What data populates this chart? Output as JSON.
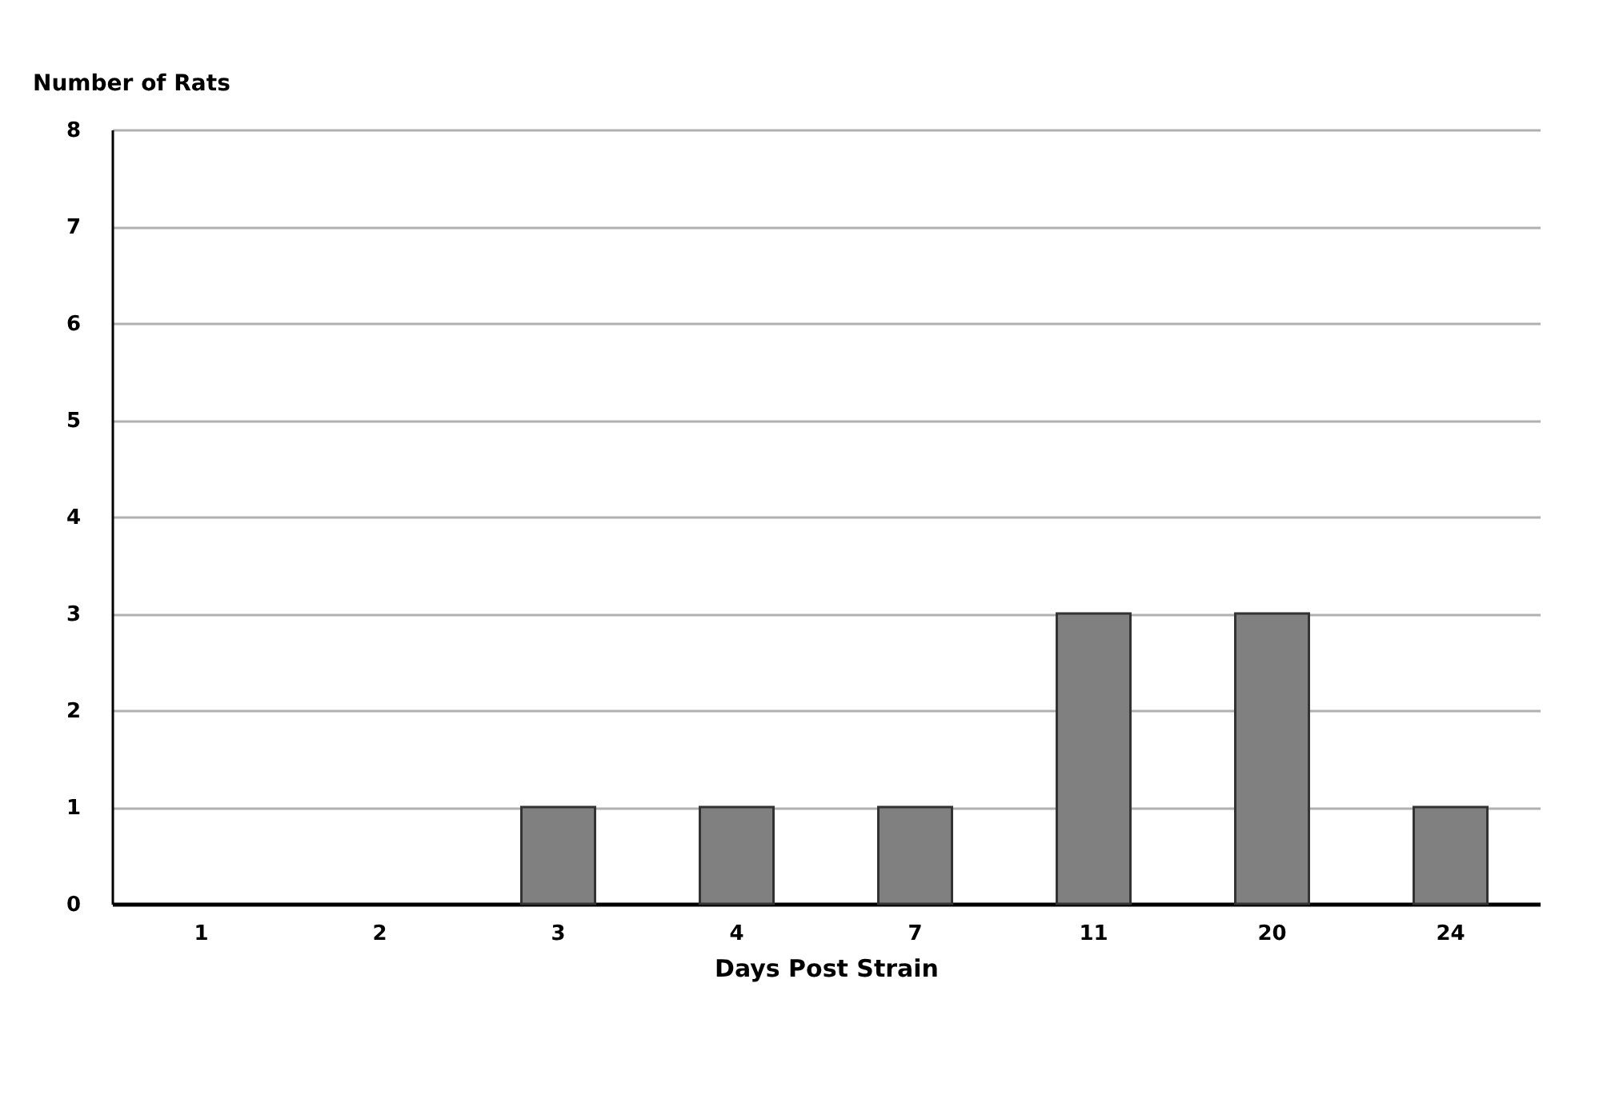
{
  "chart_data": {
    "type": "bar",
    "xlabel": "Days Post Strain",
    "ylabel": "Number of Rats",
    "categories": [
      "1",
      "2",
      "3",
      "4",
      "7",
      "11",
      "20",
      "24"
    ],
    "values": [
      0,
      0,
      1,
      1,
      1,
      3,
      3,
      1
    ],
    "color": "#808080",
    "ylim": [
      0,
      8
    ],
    "yticks": [
      0,
      1,
      2,
      3,
      4,
      5,
      6,
      7,
      8
    ],
    "grid": "y"
  }
}
